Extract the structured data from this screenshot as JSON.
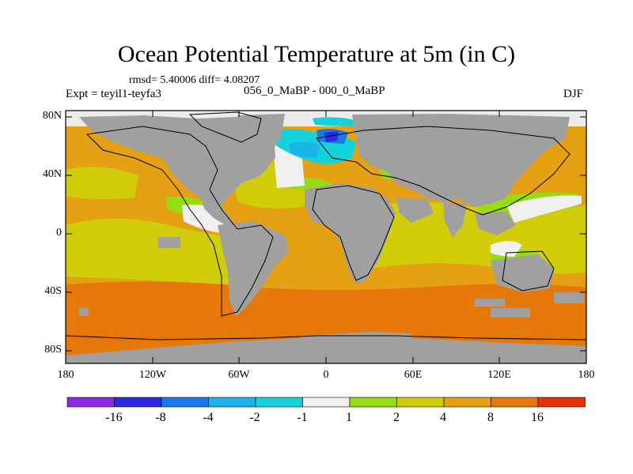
{
  "title": "Ocean Potential Temperature at 5m (in C)",
  "stats": "rmsd= 5.40006 diff= 4.08207",
  "experiment": "Expt = teyil1-teyfa3",
  "comparison": "056_0_MaBP - 000_0_MaBP",
  "season": "DJF",
  "axes": {
    "y_ticks": [
      "80N",
      "40N",
      "0",
      "40S",
      "80S"
    ],
    "x_ticks": [
      "180",
      "120W",
      "60W",
      "0",
      "60E",
      "120E",
      "180"
    ]
  },
  "colorbar": {
    "labels": [
      "-16",
      "-8",
      "-4",
      "-2",
      "-1",
      "1",
      "2",
      "4",
      "8",
      "16"
    ],
    "colors": [
      "#8c28e6",
      "#2a2ae0",
      "#1a78e8",
      "#1ab4ea",
      "#14d2dc",
      "#f0f0f0",
      "#96dc14",
      "#d2cd0a",
      "#e6a014",
      "#e6780a",
      "#e6320a"
    ]
  },
  "colors": {
    "land": "#a0a0a0",
    "ice": "#ececec"
  }
}
